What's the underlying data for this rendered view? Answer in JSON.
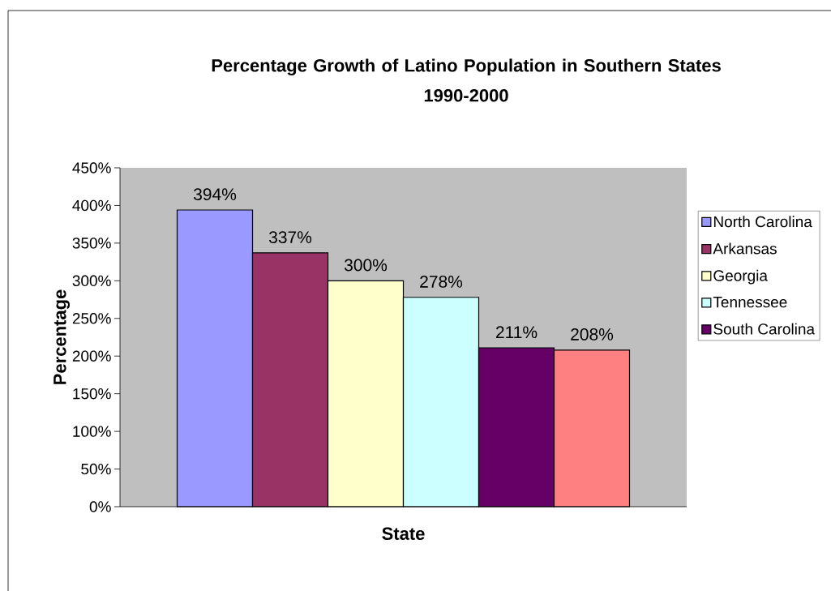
{
  "chart_data": {
    "type": "bar",
    "title": "Percentage Growth of Latino Population in Southern States",
    "subtitle": "1990-2000",
    "xlabel": "State",
    "ylabel": "Percentage",
    "categories": [
      null
    ],
    "series": [
      {
        "name": "North Carolina",
        "color": "#9999ff",
        "values": [
          394
        ],
        "value_labels": [
          "394%"
        ]
      },
      {
        "name": "Arkansas",
        "color": "#993366",
        "values": [
          337
        ],
        "value_labels": [
          "337%"
        ]
      },
      {
        "name": "Georgia",
        "color": "#ffffcc",
        "values": [
          300
        ],
        "value_labels": [
          "300%"
        ]
      },
      {
        "name": "Tennessee",
        "color": "#ccffff",
        "values": [
          278
        ],
        "value_labels": [
          "278%"
        ]
      },
      {
        "name": "South Carolina",
        "color": "#660066",
        "values": [
          211
        ],
        "value_labels": [
          "211%"
        ]
      },
      {
        "color": "#ff8080",
        "values": [
          208
        ],
        "value_labels": [
          "208%"
        ]
      }
    ],
    "ylim": [
      0,
      450
    ],
    "yticks": [
      {
        "value": 0,
        "label": "0%"
      },
      {
        "value": 50,
        "label": "50%"
      },
      {
        "value": 100,
        "label": "100%"
      },
      {
        "value": 150,
        "label": "150%"
      },
      {
        "value": 200,
        "label": "200%"
      },
      {
        "value": 250,
        "label": "250%"
      },
      {
        "value": 300,
        "label": "300%"
      },
      {
        "value": 350,
        "label": "350%"
      },
      {
        "value": 400,
        "label": "400%"
      },
      {
        "value": 450,
        "label": "450%"
      }
    ],
    "grid": false,
    "legend": "right"
  }
}
